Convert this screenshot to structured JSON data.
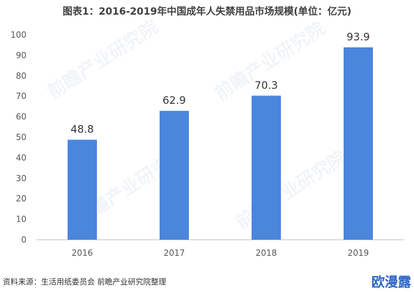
{
  "chart_data": {
    "type": "bar",
    "title": "图表1：2016-2019年中国成年人失禁用品市场规模(单位：亿元)",
    "categories": [
      "2016",
      "2017",
      "2018",
      "2019"
    ],
    "values": [
      48.8,
      62.9,
      70.3,
      93.9
    ],
    "data_labels": [
      "48.8",
      "62.9",
      "70.3",
      "93.9"
    ],
    "ylim": [
      0,
      100
    ],
    "yticks": [
      0,
      10,
      20,
      30,
      40,
      50,
      60,
      70,
      80,
      90,
      100
    ],
    "xlabel": "",
    "ylabel": "",
    "grid": false,
    "bar_color": "#4a86dc"
  },
  "footer": {
    "source": "资料来源：生活用纸委员会  前瞻产业研究院整理"
  },
  "watermark": {
    "text": "前瞻产业研究院",
    "corner_text": "欧漫露"
  }
}
